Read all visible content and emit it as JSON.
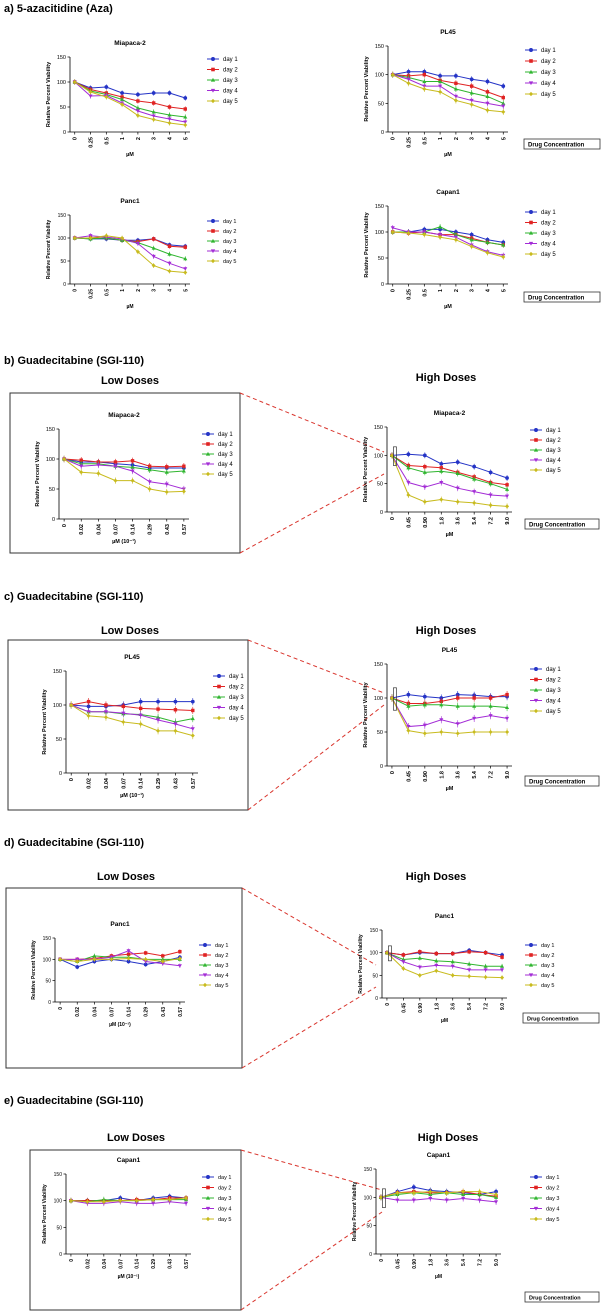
{
  "colors": {
    "day 1": "#2433c6",
    "day 2": "#e02323",
    "day 3": "#2fb52f",
    "day 4": "#a32cd6",
    "day 5": "#c8bb1e",
    "zoom": "#d9352d",
    "box": "#333333"
  },
  "chart_data": [
    {
      "id": "a1",
      "type": "line",
      "title": "Miapaca-2",
      "xlabel": "µM",
      "ylabel": "Relative Percent Viability",
      "ylim": [
        0,
        150
      ],
      "yticks": [
        0,
        50,
        100,
        150
      ],
      "categories": [
        "0",
        "0.25",
        "0.5",
        "1",
        "2",
        "3",
        "4",
        "5"
      ],
      "series": [
        {
          "name": "day 1",
          "values": [
            100,
            88,
            90,
            78,
            75,
            78,
            78,
            68
          ]
        },
        {
          "name": "day 2",
          "values": [
            100,
            85,
            78,
            70,
            62,
            58,
            50,
            46
          ]
        },
        {
          "name": "day 3",
          "values": [
            100,
            82,
            75,
            65,
            48,
            40,
            34,
            30
          ]
        },
        {
          "name": "day 4",
          "values": [
            100,
            72,
            73,
            58,
            42,
            32,
            26,
            20
          ]
        },
        {
          "name": "day 5",
          "values": [
            100,
            80,
            70,
            55,
            33,
            25,
            18,
            14
          ]
        }
      ]
    },
    {
      "id": "a2",
      "type": "line",
      "title": "PL45",
      "xlabel": "µM",
      "ylabel": "Relative Percent Viability",
      "ylim": [
        0,
        150
      ],
      "yticks": [
        0,
        50,
        100,
        150
      ],
      "categories": [
        "0",
        "0.25",
        "0.5",
        "1",
        "2",
        "3",
        "4",
        "5"
      ],
      "label_box": "Drug Concentration",
      "series": [
        {
          "name": "day 1",
          "values": [
            100,
            105,
            105,
            98,
            98,
            92,
            88,
            80
          ]
        },
        {
          "name": "day 2",
          "values": [
            100,
            98,
            100,
            90,
            85,
            80,
            70,
            60
          ]
        },
        {
          "name": "day 3",
          "values": [
            100,
            95,
            88,
            88,
            75,
            68,
            62,
            50
          ]
        },
        {
          "name": "day 4",
          "values": [
            100,
            92,
            80,
            80,
            62,
            55,
            50,
            45
          ]
        },
        {
          "name": "day 5",
          "values": [
            100,
            85,
            75,
            70,
            55,
            48,
            38,
            35
          ]
        }
      ]
    },
    {
      "id": "a3",
      "type": "line",
      "title": "Panc1",
      "xlabel": "µM",
      "ylabel": "Relative Percent Viability",
      "ylim": [
        0,
        150
      ],
      "yticks": [
        0,
        50,
        100,
        150
      ],
      "categories": [
        "0",
        "0.25",
        "0.5",
        "1",
        "2",
        "3",
        "4",
        "5"
      ],
      "series": [
        {
          "name": "day 1",
          "values": [
            100,
            98,
            98,
            95,
            95,
            98,
            85,
            82
          ]
        },
        {
          "name": "day 2",
          "values": [
            100,
            100,
            100,
            95,
            92,
            98,
            82,
            80
          ]
        },
        {
          "name": "day 3",
          "values": [
            100,
            98,
            100,
            95,
            90,
            78,
            65,
            55
          ]
        },
        {
          "name": "day 4",
          "values": [
            100,
            105,
            102,
            98,
            88,
            60,
            45,
            33
          ]
        },
        {
          "name": "day 5",
          "values": [
            100,
            100,
            105,
            100,
            70,
            40,
            28,
            25
          ]
        }
      ]
    },
    {
      "id": "a4",
      "type": "line",
      "title": "Capan1",
      "xlabel": "µM",
      "ylabel": "Relative Percent Viability",
      "ylim": [
        0,
        150
      ],
      "yticks": [
        0,
        50,
        100,
        150
      ],
      "categories": [
        "0",
        "0.25",
        "0.5",
        "1",
        "2",
        "3",
        "4",
        "5"
      ],
      "label_box": "Drug Concentration",
      "series": [
        {
          "name": "day 1",
          "values": [
            100,
            100,
            105,
            105,
            100,
            95,
            85,
            80
          ]
        },
        {
          "name": "day 2",
          "values": [
            100,
            98,
            100,
            95,
            95,
            88,
            80,
            75
          ]
        },
        {
          "name": "day 3",
          "values": [
            100,
            100,
            100,
            110,
            95,
            85,
            80,
            75
          ]
        },
        {
          "name": "day 4",
          "values": [
            108,
            100,
            100,
            95,
            90,
            75,
            62,
            55
          ]
        },
        {
          "name": "day 5",
          "values": [
            100,
            98,
            95,
            90,
            85,
            72,
            60,
            52
          ]
        }
      ]
    },
    {
      "id": "b1",
      "type": "line",
      "title": "Miapaca-2",
      "xlabel": "µM (10⁻¹)",
      "ylabel": "Relative Percent Viability",
      "ylim": [
        0,
        150
      ],
      "yticks": [
        0,
        50,
        100,
        150
      ],
      "categories": [
        "0",
        "0.02",
        "0.04",
        "0.07",
        "0.14",
        "0.29",
        "0.43",
        "0.57"
      ],
      "series": [
        {
          "name": "day 1",
          "values": [
            100,
            95,
            95,
            92,
            90,
            85,
            85,
            85
          ]
        },
        {
          "name": "day 2",
          "values": [
            100,
            98,
            95,
            95,
            97,
            88,
            87,
            88
          ]
        },
        {
          "name": "day 3",
          "values": [
            100,
            92,
            92,
            88,
            86,
            82,
            78,
            80
          ]
        },
        {
          "name": "day 4",
          "values": [
            100,
            88,
            90,
            88,
            80,
            62,
            58,
            50
          ]
        },
        {
          "name": "day 5",
          "values": [
            100,
            78,
            76,
            64,
            64,
            50,
            45,
            46
          ]
        }
      ]
    },
    {
      "id": "b2",
      "type": "line",
      "title": "Miapaca-2",
      "xlabel": "µM",
      "ylabel": "Relative Percent Viability",
      "ylim": [
        0,
        150
      ],
      "yticks": [
        0,
        50,
        100,
        150
      ],
      "categories": [
        "0",
        "0.45",
        "0.90",
        "1.8",
        "3.6",
        "5.4",
        "7.2",
        "9.0"
      ],
      "label_box": "Drug Concentration",
      "series": [
        {
          "name": "day 1",
          "values": [
            100,
            102,
            100,
            85,
            88,
            80,
            70,
            60
          ]
        },
        {
          "name": "day 2",
          "values": [
            100,
            82,
            80,
            78,
            70,
            62,
            52,
            48
          ]
        },
        {
          "name": "day 3",
          "values": [
            100,
            78,
            70,
            72,
            68,
            58,
            50,
            40
          ]
        },
        {
          "name": "day 4",
          "values": [
            100,
            52,
            44,
            52,
            42,
            36,
            30,
            28
          ]
        },
        {
          "name": "day 5",
          "values": [
            100,
            30,
            18,
            22,
            18,
            16,
            12,
            10
          ]
        }
      ]
    },
    {
      "id": "c1",
      "type": "line",
      "title": "PL45",
      "xlabel": "µM (10⁻¹)",
      "ylabel": "Relative Percent Viability",
      "ylim": [
        0,
        150
      ],
      "yticks": [
        0,
        50,
        100,
        150
      ],
      "categories": [
        "0",
        "0.02",
        "0.04",
        "0.07",
        "0.14",
        "0.29",
        "0.43",
        "0.57"
      ],
      "series": [
        {
          "name": "day 1",
          "values": [
            100,
            98,
            98,
            100,
            105,
            105,
            105,
            105
          ]
        },
        {
          "name": "day 2",
          "values": [
            100,
            105,
            100,
            98,
            95,
            94,
            93,
            92
          ]
        },
        {
          "name": "day 3",
          "values": [
            100,
            90,
            90,
            87,
            86,
            82,
            75,
            80
          ]
        },
        {
          "name": "day 4",
          "values": [
            100,
            90,
            90,
            88,
            85,
            78,
            72,
            65
          ]
        },
        {
          "name": "day 5",
          "values": [
            100,
            84,
            82,
            75,
            72,
            62,
            62,
            55
          ]
        }
      ]
    },
    {
      "id": "c2",
      "type": "line",
      "title": "PL45",
      "xlabel": "µM",
      "ylabel": "Relative Percent Viability",
      "ylim": [
        0,
        150
      ],
      "yticks": [
        0,
        50,
        100,
        150
      ],
      "categories": [
        "0",
        "0.45",
        "0.90",
        "1.8",
        "3.6",
        "5.4",
        "7.2",
        "9.0"
      ],
      "label_box": "Drug Concentration",
      "series": [
        {
          "name": "day 1",
          "values": [
            100,
            105,
            102,
            100,
            105,
            104,
            102,
            102
          ]
        },
        {
          "name": "day 2",
          "values": [
            100,
            92,
            92,
            95,
            100,
            100,
            100,
            105
          ]
        },
        {
          "name": "day 3",
          "values": [
            100,
            88,
            90,
            90,
            88,
            88,
            88,
            86
          ]
        },
        {
          "name": "day 4",
          "values": [
            100,
            58,
            60,
            68,
            62,
            70,
            74,
            70
          ]
        },
        {
          "name": "day 5",
          "values": [
            100,
            52,
            48,
            50,
            48,
            50,
            50,
            50
          ]
        }
      ]
    },
    {
      "id": "d1",
      "type": "line",
      "title": "Panc1",
      "xlabel": "µM (10⁻¹)",
      "ylabel": "Relative Percent Viability",
      "ylim": [
        0,
        150
      ],
      "yticks": [
        0,
        50,
        100,
        150
      ],
      "categories": [
        "0",
        "0.02",
        "0.04",
        "0.07",
        "0.14",
        "0.29",
        "0.43",
        "0.57"
      ],
      "series": [
        {
          "name": "day 1",
          "values": [
            100,
            82,
            95,
            100,
            95,
            88,
            95,
            105
          ]
        },
        {
          "name": "day 2",
          "values": [
            100,
            100,
            102,
            108,
            112,
            115,
            108,
            118
          ]
        },
        {
          "name": "day 3",
          "values": [
            100,
            95,
            108,
            105,
            105,
            100,
            100,
            100
          ]
        },
        {
          "name": "day 4",
          "values": [
            100,
            100,
            100,
            105,
            120,
            95,
            90,
            85
          ]
        },
        {
          "name": "day 5",
          "values": [
            100,
            95,
            100,
            100,
            102,
            100,
            95,
            102
          ]
        }
      ]
    },
    {
      "id": "d2",
      "type": "line",
      "title": "Panc1",
      "xlabel": "µM",
      "ylabel": "Relative Percent Viability",
      "ylim": [
        0,
        150
      ],
      "yticks": [
        0,
        50,
        100,
        150
      ],
      "categories": [
        "0",
        "0.45",
        "0.90",
        "1.8",
        "3.6",
        "5.4",
        "7.2",
        "9.0"
      ],
      "label_box": "Drug Concentration",
      "series": [
        {
          "name": "day 1",
          "values": [
            100,
            95,
            100,
            98,
            98,
            105,
            100,
            95
          ]
        },
        {
          "name": "day 2",
          "values": [
            100,
            95,
            102,
            98,
            98,
            102,
            100,
            90
          ]
        },
        {
          "name": "day 3",
          "values": [
            100,
            85,
            88,
            82,
            80,
            75,
            70,
            70
          ]
        },
        {
          "name": "day 4",
          "values": [
            100,
            80,
            68,
            72,
            70,
            62,
            62,
            62
          ]
        },
        {
          "name": "day 5",
          "values": [
            100,
            65,
            50,
            60,
            50,
            48,
            46,
            45
          ]
        }
      ]
    },
    {
      "id": "e1",
      "type": "line",
      "title": "Capan1",
      "xlabel": "µM (10⁻¹)",
      "ylabel": "Relative Percent Viability",
      "ylim": [
        0,
        150
      ],
      "yticks": [
        0,
        50,
        100,
        150
      ],
      "categories": [
        "0",
        "0.02",
        "0.04",
        "0.07",
        "0.14",
        "0.29",
        "0.43",
        "0.57"
      ],
      "series": [
        {
          "name": "day 1",
          "values": [
            100,
            100,
            100,
            105,
            100,
            105,
            108,
            105
          ]
        },
        {
          "name": "day 2",
          "values": [
            100,
            100,
            100,
            100,
            102,
            102,
            105,
            105
          ]
        },
        {
          "name": "day 3",
          "values": [
            100,
            98,
            102,
            100,
            100,
            102,
            102,
            102
          ]
        },
        {
          "name": "day 4",
          "values": [
            100,
            95,
            95,
            98,
            95,
            95,
            98,
            95
          ]
        },
        {
          "name": "day 5",
          "values": [
            100,
            98,
            98,
            100,
            100,
            102,
            102,
            105
          ]
        }
      ]
    },
    {
      "id": "e2",
      "type": "line",
      "title": "Capan1",
      "xlabel": "µM",
      "ylabel": "Relative Percent Viability",
      "ylim": [
        0,
        150
      ],
      "yticks": [
        0,
        50,
        100,
        150
      ],
      "categories": [
        "0",
        "0.45",
        "0.90",
        "1.8",
        "3.6",
        "5.4",
        "7.2",
        "9.0"
      ],
      "label_box": "Drug Concentration",
      "series": [
        {
          "name": "day 1",
          "values": [
            100,
            110,
            118,
            112,
            110,
            108,
            105,
            110
          ]
        },
        {
          "name": "day 2",
          "values": [
            100,
            108,
            110,
            108,
            108,
            110,
            105,
            102
          ]
        },
        {
          "name": "day 3",
          "values": [
            100,
            105,
            108,
            105,
            108,
            105,
            105,
            100
          ]
        },
        {
          "name": "day 4",
          "values": [
            100,
            95,
            95,
            98,
            95,
            98,
            95,
            92
          ]
        },
        {
          "name": "day 5",
          "values": [
            100,
            108,
            108,
            110,
            108,
            110,
            110,
            105
          ]
        }
      ]
    }
  ],
  "headings": {
    "a": "a)  5-azacitidine (Aza)",
    "b": "b)  Guadecitabine (SGI-110)",
    "c": "c)  Guadecitabine (SGI-110)",
    "d": "d)  Guadecitabine (SGI-110)",
    "e": "e)  Guadecitabine (SGI-110)"
  },
  "subheadings": {
    "low": "Low Doses",
    "high": "High Doses"
  }
}
